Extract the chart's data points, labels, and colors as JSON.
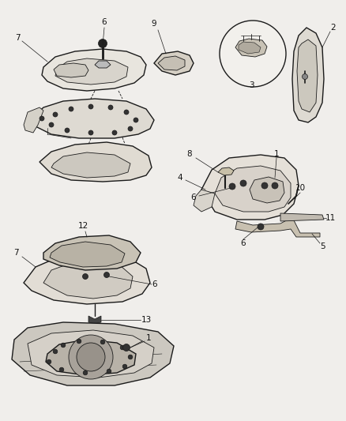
{
  "bg_color": "#f0eeeb",
  "line_color": "#1a1a1a",
  "label_color": "#111111",
  "label_fontsize": 7.5,
  "fig_w": 4.38,
  "fig_h": 5.33,
  "dpi": 100
}
